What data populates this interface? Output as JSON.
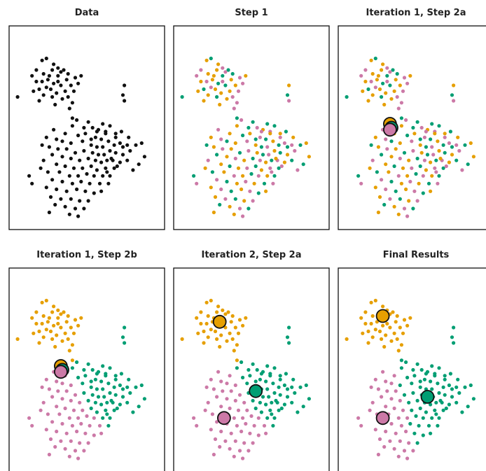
{
  "figure": {
    "colors": {
      "data": "#111111",
      "orange": "#E69F00",
      "green": "#009E73",
      "pink": "#CC79A7",
      "centroid_outline": "#111111"
    }
  },
  "chart_data": [
    {
      "type": "scatter",
      "title": "Data",
      "coloring": "none",
      "centroids": []
    },
    {
      "type": "scatter",
      "title": "Step 1",
      "coloring": "random",
      "centroids": []
    },
    {
      "type": "scatter",
      "title": "Iteration 1, Step 2a",
      "coloring": "random",
      "centroids": [
        {
          "cluster": "orange",
          "x": 0.32,
          "y": 0.52
        },
        {
          "cluster": "green",
          "x": 0.33,
          "y": 0.5
        },
        {
          "cluster": "pink",
          "x": 0.32,
          "y": 0.49
        }
      ]
    },
    {
      "type": "scatter",
      "title": "Iteration 1, Step 2b",
      "coloring": "nearest-centroid",
      "centroids": [
        {
          "cluster": "orange",
          "x": 0.32,
          "y": 0.52
        },
        {
          "cluster": "green",
          "x": 0.33,
          "y": 0.5
        },
        {
          "cluster": "pink",
          "x": 0.32,
          "y": 0.49
        }
      ]
    },
    {
      "type": "scatter",
      "title": "Iteration 2, Step 2a",
      "coloring": "previous-step",
      "centroids": [
        {
          "cluster": "orange",
          "x": 0.28,
          "y": 0.75
        },
        {
          "cluster": "green",
          "x": 0.53,
          "y": 0.39
        },
        {
          "cluster": "pink",
          "x": 0.31,
          "y": 0.25
        }
      ]
    },
    {
      "type": "scatter",
      "title": "Final Results",
      "coloring": "nearest-centroid",
      "centroids": [
        {
          "cluster": "orange",
          "x": 0.27,
          "y": 0.78
        },
        {
          "cluster": "green",
          "x": 0.58,
          "y": 0.36
        },
        {
          "cluster": "pink",
          "x": 0.27,
          "y": 0.25
        }
      ]
    }
  ],
  "points": [
    {
      "x": 0.19,
      "y": 0.85,
      "s": 0
    },
    {
      "x": 0.22,
      "y": 0.86,
      "s": 1
    },
    {
      "x": 0.15,
      "y": 0.8,
      "s": 2
    },
    {
      "x": 0.27,
      "y": 0.83,
      "s": 0
    },
    {
      "x": 0.3,
      "y": 0.81,
      "s": 2
    },
    {
      "x": 0.34,
      "y": 0.8,
      "s": 1
    },
    {
      "x": 0.26,
      "y": 0.8,
      "s": 0
    },
    {
      "x": 0.32,
      "y": 0.79,
      "s": 2
    },
    {
      "x": 0.3,
      "y": 0.77,
      "s": 1
    },
    {
      "x": 0.24,
      "y": 0.77,
      "s": 0
    },
    {
      "x": 0.2,
      "y": 0.78,
      "s": 0
    },
    {
      "x": 0.37,
      "y": 0.78,
      "s": 1
    },
    {
      "x": 0.42,
      "y": 0.76,
      "s": 2
    },
    {
      "x": 0.36,
      "y": 0.75,
      "s": 0
    },
    {
      "x": 0.3,
      "y": 0.74,
      "s": 2
    },
    {
      "x": 0.27,
      "y": 0.73,
      "s": 1
    },
    {
      "x": 0.23,
      "y": 0.75,
      "s": 0
    },
    {
      "x": 0.19,
      "y": 0.74,
      "s": 2
    },
    {
      "x": 0.15,
      "y": 0.74,
      "s": 0
    },
    {
      "x": 0.12,
      "y": 0.77,
      "s": 2
    },
    {
      "x": 0.25,
      "y": 0.7,
      "s": 0
    },
    {
      "x": 0.32,
      "y": 0.72,
      "s": 1
    },
    {
      "x": 0.39,
      "y": 0.72,
      "s": 0
    },
    {
      "x": 0.44,
      "y": 0.73,
      "s": 2
    },
    {
      "x": 0.46,
      "y": 0.77,
      "s": 0
    },
    {
      "x": 0.22,
      "y": 0.71,
      "s": 2
    },
    {
      "x": 0.17,
      "y": 0.7,
      "s": 1
    },
    {
      "x": 0.35,
      "y": 0.69,
      "s": 0
    },
    {
      "x": 0.41,
      "y": 0.69,
      "s": 2
    },
    {
      "x": 0.29,
      "y": 0.68,
      "s": 0
    },
    {
      "x": 0.13,
      "y": 0.69,
      "s": 0
    },
    {
      "x": 0.37,
      "y": 0.66,
      "s": 2
    },
    {
      "x": 0.2,
      "y": 0.67,
      "s": 0
    },
    {
      "x": 0.26,
      "y": 0.66,
      "s": 1
    },
    {
      "x": 0.33,
      "y": 0.65,
      "s": 0
    },
    {
      "x": 0.02,
      "y": 0.66,
      "s": 1
    },
    {
      "x": 0.76,
      "y": 0.72,
      "s": 0
    },
    {
      "x": 0.75,
      "y": 0.67,
      "s": 1
    },
    {
      "x": 0.76,
      "y": 0.64,
      "s": 2
    },
    {
      "x": 0.17,
      "y": 0.64,
      "s": 0
    },
    {
      "x": 0.4,
      "y": 0.63,
      "s": 2
    },
    {
      "x": 0.28,
      "y": 0.62,
      "s": 0
    },
    {
      "x": 0.38,
      "y": 0.6,
      "s": 2
    },
    {
      "x": 0.4,
      "y": 0.55,
      "s": 1
    },
    {
      "x": 0.43,
      "y": 0.54,
      "s": 2
    },
    {
      "x": 0.51,
      "y": 0.53,
      "s": 1
    },
    {
      "x": 0.4,
      "y": 0.51,
      "s": 0
    },
    {
      "x": 0.54,
      "y": 0.5,
      "s": 2
    },
    {
      "x": 0.61,
      "y": 0.52,
      "s": 1
    },
    {
      "x": 0.58,
      "y": 0.49,
      "s": 0
    },
    {
      "x": 0.63,
      "y": 0.48,
      "s": 2
    },
    {
      "x": 0.66,
      "y": 0.51,
      "s": 1
    },
    {
      "x": 0.7,
      "y": 0.47,
      "s": 0
    },
    {
      "x": 0.74,
      "y": 0.48,
      "s": 1
    },
    {
      "x": 0.79,
      "y": 0.45,
      "s": 0
    },
    {
      "x": 0.78,
      "y": 0.41,
      "s": 2
    },
    {
      "x": 0.84,
      "y": 0.41,
      "s": 1
    },
    {
      "x": 0.88,
      "y": 0.42,
      "s": 0
    },
    {
      "x": 0.27,
      "y": 0.49,
      "s": 2
    },
    {
      "x": 0.35,
      "y": 0.47,
      "s": 0
    },
    {
      "x": 0.44,
      "y": 0.46,
      "s": 1
    },
    {
      "x": 0.49,
      "y": 0.47,
      "s": 0
    },
    {
      "x": 0.56,
      "y": 0.45,
      "s": 2
    },
    {
      "x": 0.6,
      "y": 0.44,
      "s": 1
    },
    {
      "x": 0.22,
      "y": 0.45,
      "s": 0
    },
    {
      "x": 0.29,
      "y": 0.44,
      "s": 2
    },
    {
      "x": 0.33,
      "y": 0.43,
      "s": 1
    },
    {
      "x": 0.39,
      "y": 0.42,
      "s": 0
    },
    {
      "x": 0.47,
      "y": 0.43,
      "s": 2
    },
    {
      "x": 0.53,
      "y": 0.41,
      "s": 0
    },
    {
      "x": 0.57,
      "y": 0.4,
      "s": 1
    },
    {
      "x": 0.61,
      "y": 0.4,
      "s": 2
    },
    {
      "x": 0.65,
      "y": 0.43,
      "s": 0
    },
    {
      "x": 0.69,
      "y": 0.41,
      "s": 1
    },
    {
      "x": 0.73,
      "y": 0.42,
      "s": 2
    },
    {
      "x": 0.19,
      "y": 0.41,
      "s": 1
    },
    {
      "x": 0.24,
      "y": 0.4,
      "s": 0
    },
    {
      "x": 0.3,
      "y": 0.39,
      "s": 2
    },
    {
      "x": 0.36,
      "y": 0.39,
      "s": 0
    },
    {
      "x": 0.42,
      "y": 0.37,
      "s": 1
    },
    {
      "x": 0.48,
      "y": 0.38,
      "s": 2
    },
    {
      "x": 0.54,
      "y": 0.37,
      "s": 0
    },
    {
      "x": 0.58,
      "y": 0.36,
      "s": 1
    },
    {
      "x": 0.62,
      "y": 0.36,
      "s": 2
    },
    {
      "x": 0.66,
      "y": 0.38,
      "s": 0
    },
    {
      "x": 0.7,
      "y": 0.37,
      "s": 1
    },
    {
      "x": 0.75,
      "y": 0.36,
      "s": 0
    },
    {
      "x": 0.8,
      "y": 0.38,
      "s": 2
    },
    {
      "x": 0.26,
      "y": 0.36,
      "s": 1
    },
    {
      "x": 0.33,
      "y": 0.35,
      "s": 0
    },
    {
      "x": 0.39,
      "y": 0.34,
      "s": 2
    },
    {
      "x": 0.45,
      "y": 0.33,
      "s": 0
    },
    {
      "x": 0.51,
      "y": 0.34,
      "s": 1
    },
    {
      "x": 0.56,
      "y": 0.33,
      "s": 2
    },
    {
      "x": 0.6,
      "y": 0.32,
      "s": 0
    },
    {
      "x": 0.64,
      "y": 0.33,
      "s": 1
    },
    {
      "x": 0.68,
      "y": 0.33,
      "s": 2
    },
    {
      "x": 0.73,
      "y": 0.32,
      "s": 0
    },
    {
      "x": 0.78,
      "y": 0.33,
      "s": 1
    },
    {
      "x": 0.2,
      "y": 0.33,
      "s": 2
    },
    {
      "x": 0.29,
      "y": 0.31,
      "s": 0
    },
    {
      "x": 0.35,
      "y": 0.3,
      "s": 1
    },
    {
      "x": 0.41,
      "y": 0.29,
      "s": 0
    },
    {
      "x": 0.47,
      "y": 0.29,
      "s": 2
    },
    {
      "x": 0.53,
      "y": 0.3,
      "s": 1
    },
    {
      "x": 0.57,
      "y": 0.28,
      "s": 0
    },
    {
      "x": 0.63,
      "y": 0.29,
      "s": 2
    },
    {
      "x": 0.69,
      "y": 0.29,
      "s": 1
    },
    {
      "x": 0.23,
      "y": 0.27,
      "s": 1
    },
    {
      "x": 0.31,
      "y": 0.27,
      "s": 0
    },
    {
      "x": 0.38,
      "y": 0.25,
      "s": 2
    },
    {
      "x": 0.44,
      "y": 0.25,
      "s": 0
    },
    {
      "x": 0.5,
      "y": 0.26,
      "s": 1
    },
    {
      "x": 0.55,
      "y": 0.25,
      "s": 2
    },
    {
      "x": 0.61,
      "y": 0.25,
      "s": 0
    },
    {
      "x": 0.66,
      "y": 0.25,
      "s": 1
    },
    {
      "x": 0.26,
      "y": 0.23,
      "s": 2
    },
    {
      "x": 0.33,
      "y": 0.22,
      "s": 1
    },
    {
      "x": 0.4,
      "y": 0.21,
      "s": 0
    },
    {
      "x": 0.46,
      "y": 0.22,
      "s": 2
    },
    {
      "x": 0.52,
      "y": 0.21,
      "s": 0
    },
    {
      "x": 0.59,
      "y": 0.21,
      "s": 1
    },
    {
      "x": 0.22,
      "y": 0.19,
      "s": 0
    },
    {
      "x": 0.29,
      "y": 0.18,
      "s": 2
    },
    {
      "x": 0.36,
      "y": 0.17,
      "s": 1
    },
    {
      "x": 0.43,
      "y": 0.18,
      "s": 0
    },
    {
      "x": 0.49,
      "y": 0.17,
      "s": 2
    },
    {
      "x": 0.55,
      "y": 0.16,
      "s": 1
    },
    {
      "x": 0.25,
      "y": 0.14,
      "s": 0
    },
    {
      "x": 0.32,
      "y": 0.13,
      "s": 2
    },
    {
      "x": 0.39,
      "y": 0.13,
      "s": 1
    },
    {
      "x": 0.45,
      "y": 0.12,
      "s": 0
    },
    {
      "x": 0.51,
      "y": 0.12,
      "s": 2
    },
    {
      "x": 0.28,
      "y": 0.1,
      "s": 1
    },
    {
      "x": 0.35,
      "y": 0.09,
      "s": 0
    },
    {
      "x": 0.42,
      "y": 0.08,
      "s": 2
    },
    {
      "x": 0.48,
      "y": 0.08,
      "s": 1
    },
    {
      "x": 0.38,
      "y": 0.05,
      "s": 0
    },
    {
      "x": 0.44,
      "y": 0.04,
      "s": 2
    },
    {
      "x": 0.24,
      "y": 0.06,
      "s": 0
    },
    {
      "x": 0.1,
      "y": 0.25,
      "s": 1
    },
    {
      "x": 0.12,
      "y": 0.21,
      "s": 2
    },
    {
      "x": 0.9,
      "y": 0.35,
      "s": 0
    },
    {
      "x": 0.86,
      "y": 0.31,
      "s": 1
    },
    {
      "x": 0.82,
      "y": 0.28,
      "s": 2
    },
    {
      "x": 0.18,
      "y": 0.29,
      "s": 0
    },
    {
      "x": 0.65,
      "y": 0.21,
      "s": 2
    },
    {
      "x": 0.6,
      "y": 0.17,
      "s": 0
    },
    {
      "x": 0.7,
      "y": 0.45,
      "s": 2
    },
    {
      "x": 0.67,
      "y": 0.34,
      "s": 0
    },
    {
      "x": 0.71,
      "y": 0.3,
      "s": 2
    },
    {
      "x": 0.53,
      "y": 0.44,
      "s": 1
    },
    {
      "x": 0.57,
      "y": 0.48,
      "s": 2
    },
    {
      "x": 0.63,
      "y": 0.47,
      "s": 0
    },
    {
      "x": 0.48,
      "y": 0.5,
      "s": 1
    },
    {
      "x": 0.75,
      "y": 0.4,
      "s": 1
    },
    {
      "x": 0.64,
      "y": 0.27,
      "s": 2
    }
  ]
}
